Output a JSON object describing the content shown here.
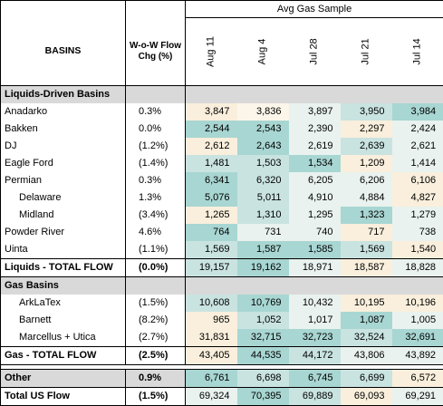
{
  "header": {
    "group_title": "Avg Gas Sample",
    "basins_label": "BASINS",
    "chg_label": "W-o-W Flow Chg (%)",
    "dates": [
      "Aug 11",
      "Aug 4",
      "Jul 28",
      "Jul 21",
      "Jul 14"
    ]
  },
  "colors": {
    "light": "#f9efdc",
    "cream": "#fcf6ea",
    "pale": "#e9f2ee",
    "mid": "#c9e3e0",
    "teal": "#a8d6d2",
    "white": "#ffffff"
  },
  "sections": [
    {
      "title": "Liquids-Driven Basins",
      "rows": [
        {
          "name": "Anadarko",
          "indent": false,
          "chg": "0.3%",
          "values": [
            "3,847",
            "3,836",
            "3,897",
            "3,950",
            "3,984"
          ],
          "shades": [
            "light",
            "cream",
            "pale",
            "mid",
            "teal"
          ]
        },
        {
          "name": "Bakken",
          "indent": false,
          "chg": "0.0%",
          "values": [
            "2,544",
            "2,543",
            "2,390",
            "2,297",
            "2,424"
          ],
          "shades": [
            "teal",
            "teal",
            "pale",
            "light",
            "pale"
          ]
        },
        {
          "name": "DJ",
          "indent": false,
          "chg": "(1.2%)",
          "values": [
            "2,612",
            "2,643",
            "2,619",
            "2,639",
            "2,621"
          ],
          "shades": [
            "light",
            "teal",
            "pale",
            "mid",
            "pale"
          ]
        },
        {
          "name": "Eagle Ford",
          "indent": false,
          "chg": "(1.4%)",
          "values": [
            "1,481",
            "1,503",
            "1,534",
            "1,209",
            "1,414"
          ],
          "shades": [
            "mid",
            "mid",
            "teal",
            "light",
            "pale"
          ]
        },
        {
          "name": "Permian",
          "indent": false,
          "chg": "0.3%",
          "values": [
            "6,341",
            "6,320",
            "6,205",
            "6,206",
            "6,106"
          ],
          "shades": [
            "teal",
            "mid",
            "pale",
            "pale",
            "light"
          ]
        },
        {
          "name": "Delaware",
          "indent": true,
          "chg": "1.3%",
          "values": [
            "5,076",
            "5,011",
            "4,910",
            "4,884",
            "4,827"
          ],
          "shades": [
            "teal",
            "mid",
            "pale",
            "pale",
            "light"
          ]
        },
        {
          "name": "Midland",
          "indent": true,
          "chg": "(3.4%)",
          "values": [
            "1,265",
            "1,310",
            "1,295",
            "1,323",
            "1,279"
          ],
          "shades": [
            "light",
            "mid",
            "pale",
            "teal",
            "pale"
          ]
        },
        {
          "name": "Powder River",
          "indent": false,
          "chg": "4.6%",
          "values": [
            "764",
            "731",
            "740",
            "717",
            "738"
          ],
          "shades": [
            "teal",
            "pale",
            "pale",
            "light",
            "pale"
          ]
        },
        {
          "name": "Uinta",
          "indent": false,
          "chg": "(1.1%)",
          "values": [
            "1,569",
            "1,587",
            "1,585",
            "1,569",
            "1,540"
          ],
          "shades": [
            "mid",
            "teal",
            "teal",
            "mid",
            "light"
          ]
        }
      ],
      "total": {
        "name": "Liquids - TOTAL FLOW",
        "chg": "(0.0%)",
        "values": [
          "19,157",
          "19,162",
          "18,971",
          "18,587",
          "18,828"
        ],
        "shades": [
          "mid",
          "teal",
          "pale",
          "light",
          "pale"
        ]
      }
    },
    {
      "title": "Gas Basins",
      "rows": [
        {
          "name": "ArkLaTex",
          "indent": true,
          "chg": "(1.5%)",
          "values": [
            "10,608",
            "10,769",
            "10,432",
            "10,195",
            "10,196"
          ],
          "shades": [
            "mid",
            "teal",
            "pale",
            "light",
            "light"
          ]
        },
        {
          "name": "Barnett",
          "indent": true,
          "chg": "(8.2%)",
          "values": [
            "965",
            "1,052",
            "1,017",
            "1,087",
            "1,005"
          ],
          "shades": [
            "light",
            "mid",
            "pale",
            "teal",
            "pale"
          ]
        },
        {
          "name": "Marcellus + Utica",
          "indent": true,
          "chg": "(2.7%)",
          "values": [
            "31,831",
            "32,715",
            "32,723",
            "32,524",
            "32,691"
          ],
          "shades": [
            "light",
            "teal",
            "teal",
            "mid",
            "teal"
          ]
        }
      ],
      "total": {
        "name": "Gas - TOTAL FLOW",
        "chg": "(2.5%)",
        "values": [
          "43,405",
          "44,535",
          "44,172",
          "43,806",
          "43,892"
        ],
        "shades": [
          "light",
          "teal",
          "mid",
          "pale",
          "pale"
        ]
      }
    }
  ],
  "other": {
    "name": "Other",
    "chg": "0.9%",
    "values": [
      "6,761",
      "6,698",
      "6,745",
      "6,699",
      "6,572"
    ],
    "shades": [
      "teal",
      "mid",
      "teal",
      "mid",
      "light"
    ]
  },
  "grand_total": {
    "name": "Total US Flow",
    "chg": "(1.5%)",
    "values": [
      "69,324",
      "70,395",
      "69,889",
      "69,093",
      "69,291"
    ],
    "shades": [
      "pale",
      "teal",
      "mid",
      "light",
      "pale"
    ]
  }
}
